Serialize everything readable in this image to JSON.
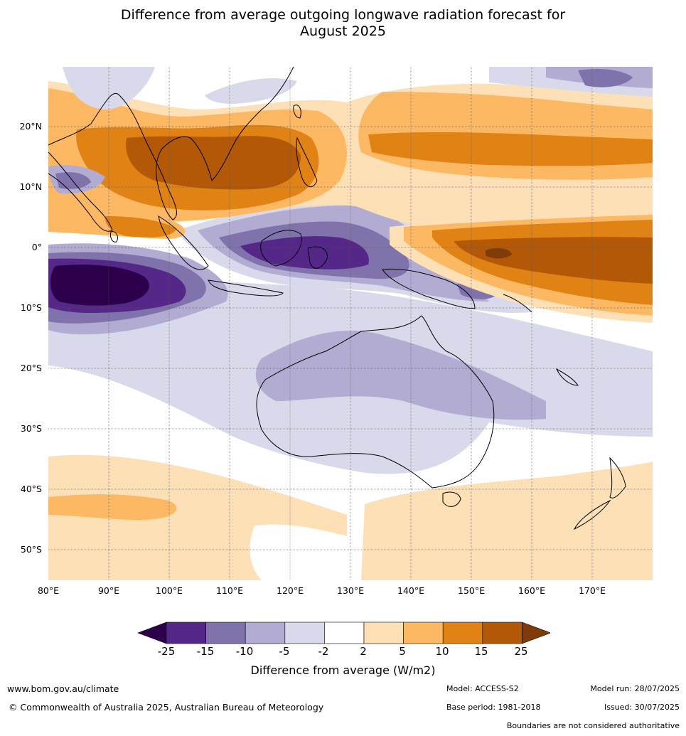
{
  "title_line1": "Difference from average outgoing longwave radiation forecast for",
  "title_line2": "August 2025",
  "map": {
    "lat_ticks": [
      "20°N",
      "10°N",
      "0°",
      "10°S",
      "20°S",
      "30°S",
      "40°S",
      "50°S"
    ],
    "lon_ticks": [
      "80°E",
      "90°E",
      "100°E",
      "110°E",
      "120°E",
      "130°E",
      "140°E",
      "150°E",
      "160°E",
      "170°E"
    ],
    "lon_range": [
      80,
      180
    ],
    "lat_range": [
      -55,
      30
    ]
  },
  "legend": {
    "ticks": [
      "-25",
      "-15",
      "-10",
      "-5",
      "-2",
      "2",
      "5",
      "10",
      "15",
      "25"
    ],
    "label": "Difference from average (W/m2)",
    "colors": [
      "#2d004b",
      "#542788",
      "#8073ac",
      "#b2abd2",
      "#d8daeb",
      "#ffffff",
      "#fee0b6",
      "#fdb863",
      "#e08214",
      "#b35806",
      "#7f3b08"
    ]
  },
  "footer": {
    "website": "www.bom.gov.au/climate",
    "copyright": "© Commonwealth of Australia 2025, Australian Bureau of Meteorology",
    "model": "Model: ACCESS-S2",
    "model_run": "Model run: 28/07/2025",
    "base_period": "Base period: 1981-2018",
    "issued": "Issued: 30/07/2025",
    "boundaries_note": "Boundaries are not considered authoritative"
  }
}
